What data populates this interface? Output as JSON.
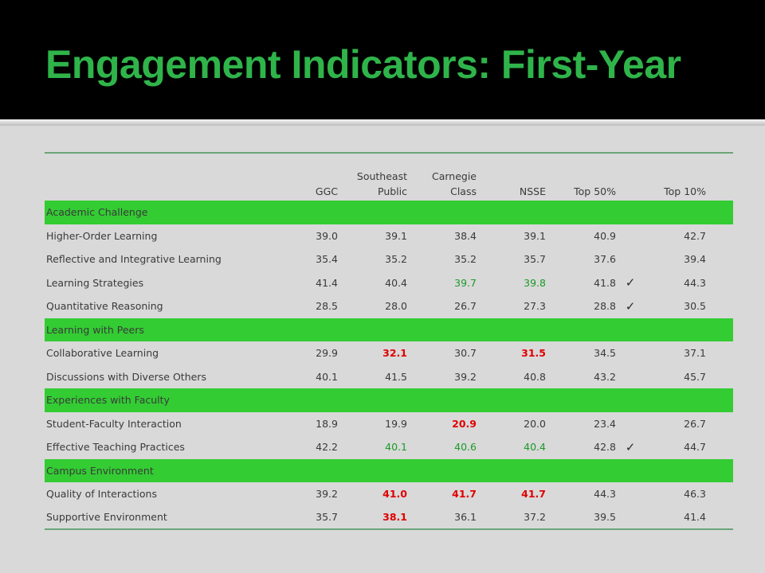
{
  "slide": {
    "title": "Engagement Indicators: First-Year"
  },
  "table": {
    "headers": [
      "",
      "GGC",
      "Southeast\nPublic",
      "Carnegie\nClass",
      "NSSE",
      "Top 50%",
      "",
      "Top 10%"
    ],
    "sections": [
      {
        "name": "Academic Challenge",
        "rows": [
          {
            "label": "Higher-Order Learning",
            "values": [
              "39.0",
              "39.1",
              "38.4",
              "39.1",
              "40.9"
            ],
            "check": "",
            "top10": "42.7",
            "styles": [
              "",
              "",
              "",
              "",
              ""
            ]
          },
          {
            "label": "Reflective and Integrative Learning",
            "values": [
              "35.4",
              "35.2",
              "35.2",
              "35.7",
              "37.6"
            ],
            "check": "",
            "top10": "39.4",
            "styles": [
              "",
              "",
              "",
              "",
              ""
            ]
          },
          {
            "label": "Learning Strategies",
            "values": [
              "41.4",
              "40.4",
              "39.7",
              "39.8",
              "41.8"
            ],
            "check": "✓",
            "top10": "44.3",
            "styles": [
              "",
              "",
              "green",
              "green",
              ""
            ]
          },
          {
            "label": "Quantitative Reasoning",
            "values": [
              "28.5",
              "28.0",
              "26.7",
              "27.3",
              "28.8"
            ],
            "check": "✓",
            "top10": "30.5",
            "styles": [
              "",
              "",
              "",
              "",
              ""
            ]
          }
        ]
      },
      {
        "name": "Learning with Peers",
        "rows": [
          {
            "label": "Collaborative Learning",
            "values": [
              "29.9",
              "32.1",
              "30.7",
              "31.5",
              "34.5"
            ],
            "check": "",
            "top10": "37.1",
            "styles": [
              "",
              "red",
              "",
              "red",
              ""
            ]
          },
          {
            "label": "Discussions with Diverse Others",
            "values": [
              "40.1",
              "41.5",
              "39.2",
              "40.8",
              "43.2"
            ],
            "check": "",
            "top10": "45.7",
            "styles": [
              "",
              "",
              "",
              "",
              ""
            ]
          }
        ]
      },
      {
        "name": "Experiences with Faculty",
        "rows": [
          {
            "label": "Student-Faculty Interaction",
            "values": [
              "18.9",
              "19.9",
              "20.9",
              "20.0",
              "23.4"
            ],
            "check": "",
            "top10": "26.7",
            "styles": [
              "",
              "",
              "red",
              "",
              ""
            ]
          },
          {
            "label": "Effective Teaching Practices",
            "values": [
              "42.2",
              "40.1",
              "40.6",
              "40.4",
              "42.8"
            ],
            "check": "✓",
            "top10": "44.7",
            "styles": [
              "",
              "green",
              "green",
              "green",
              ""
            ]
          }
        ]
      },
      {
        "name": "Campus Environment",
        "rows": [
          {
            "label": "Quality of Interactions",
            "values": [
              "39.2",
              "41.0",
              "41.7",
              "41.7",
              "44.3"
            ],
            "check": "",
            "top10": "46.3",
            "styles": [
              "",
              "red",
              "red",
              "red",
              ""
            ]
          },
          {
            "label": "Supportive Environment",
            "values": [
              "35.7",
              "38.1",
              "36.1",
              "37.2",
              "39.5"
            ],
            "check": "",
            "top10": "41.4",
            "styles": [
              "",
              "red",
              "",
              "",
              ""
            ]
          }
        ]
      }
    ]
  },
  "colors": {
    "title": "#2fb44a",
    "section_fill": "#33cc33",
    "significant_high": "#1a9a28",
    "significant_low": "#e00000",
    "background": "#d9d9d9",
    "header_band": "#000000"
  }
}
